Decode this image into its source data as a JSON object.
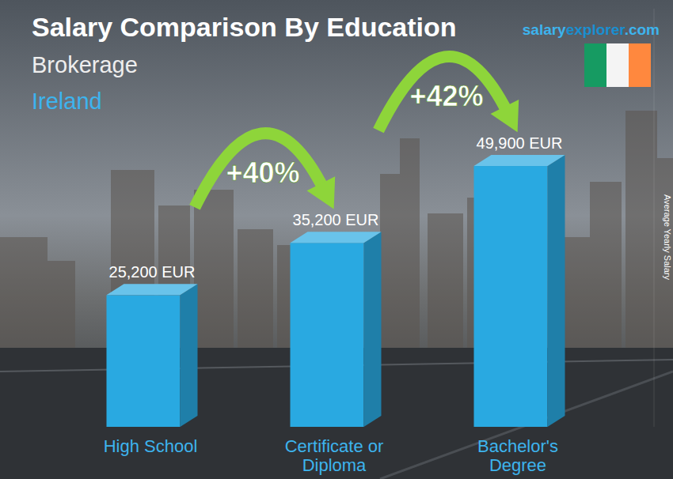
{
  "chart_data": {
    "type": "bar",
    "title": "Salary Comparison By Education",
    "subtitle": "Brokerage",
    "location": "Ireland",
    "source": [
      "salary",
      "explorer",
      ".com"
    ],
    "y_label": "Average Yearly Salary",
    "categories": [
      "High School",
      "Certificate or Diploma",
      "Bachelor's Degree"
    ],
    "values": [
      25200,
      35200,
      49900
    ],
    "value_labels": [
      "25,200 EUR",
      "35,200 EUR",
      "49,900 EUR"
    ],
    "annotations": [
      "+40%",
      "+42%"
    ],
    "color": "#29a9e1",
    "ylim": [
      0,
      80000
    ],
    "yticks": [],
    "data_labels": true,
    "tick_labels": false,
    "grid": false
  }
}
